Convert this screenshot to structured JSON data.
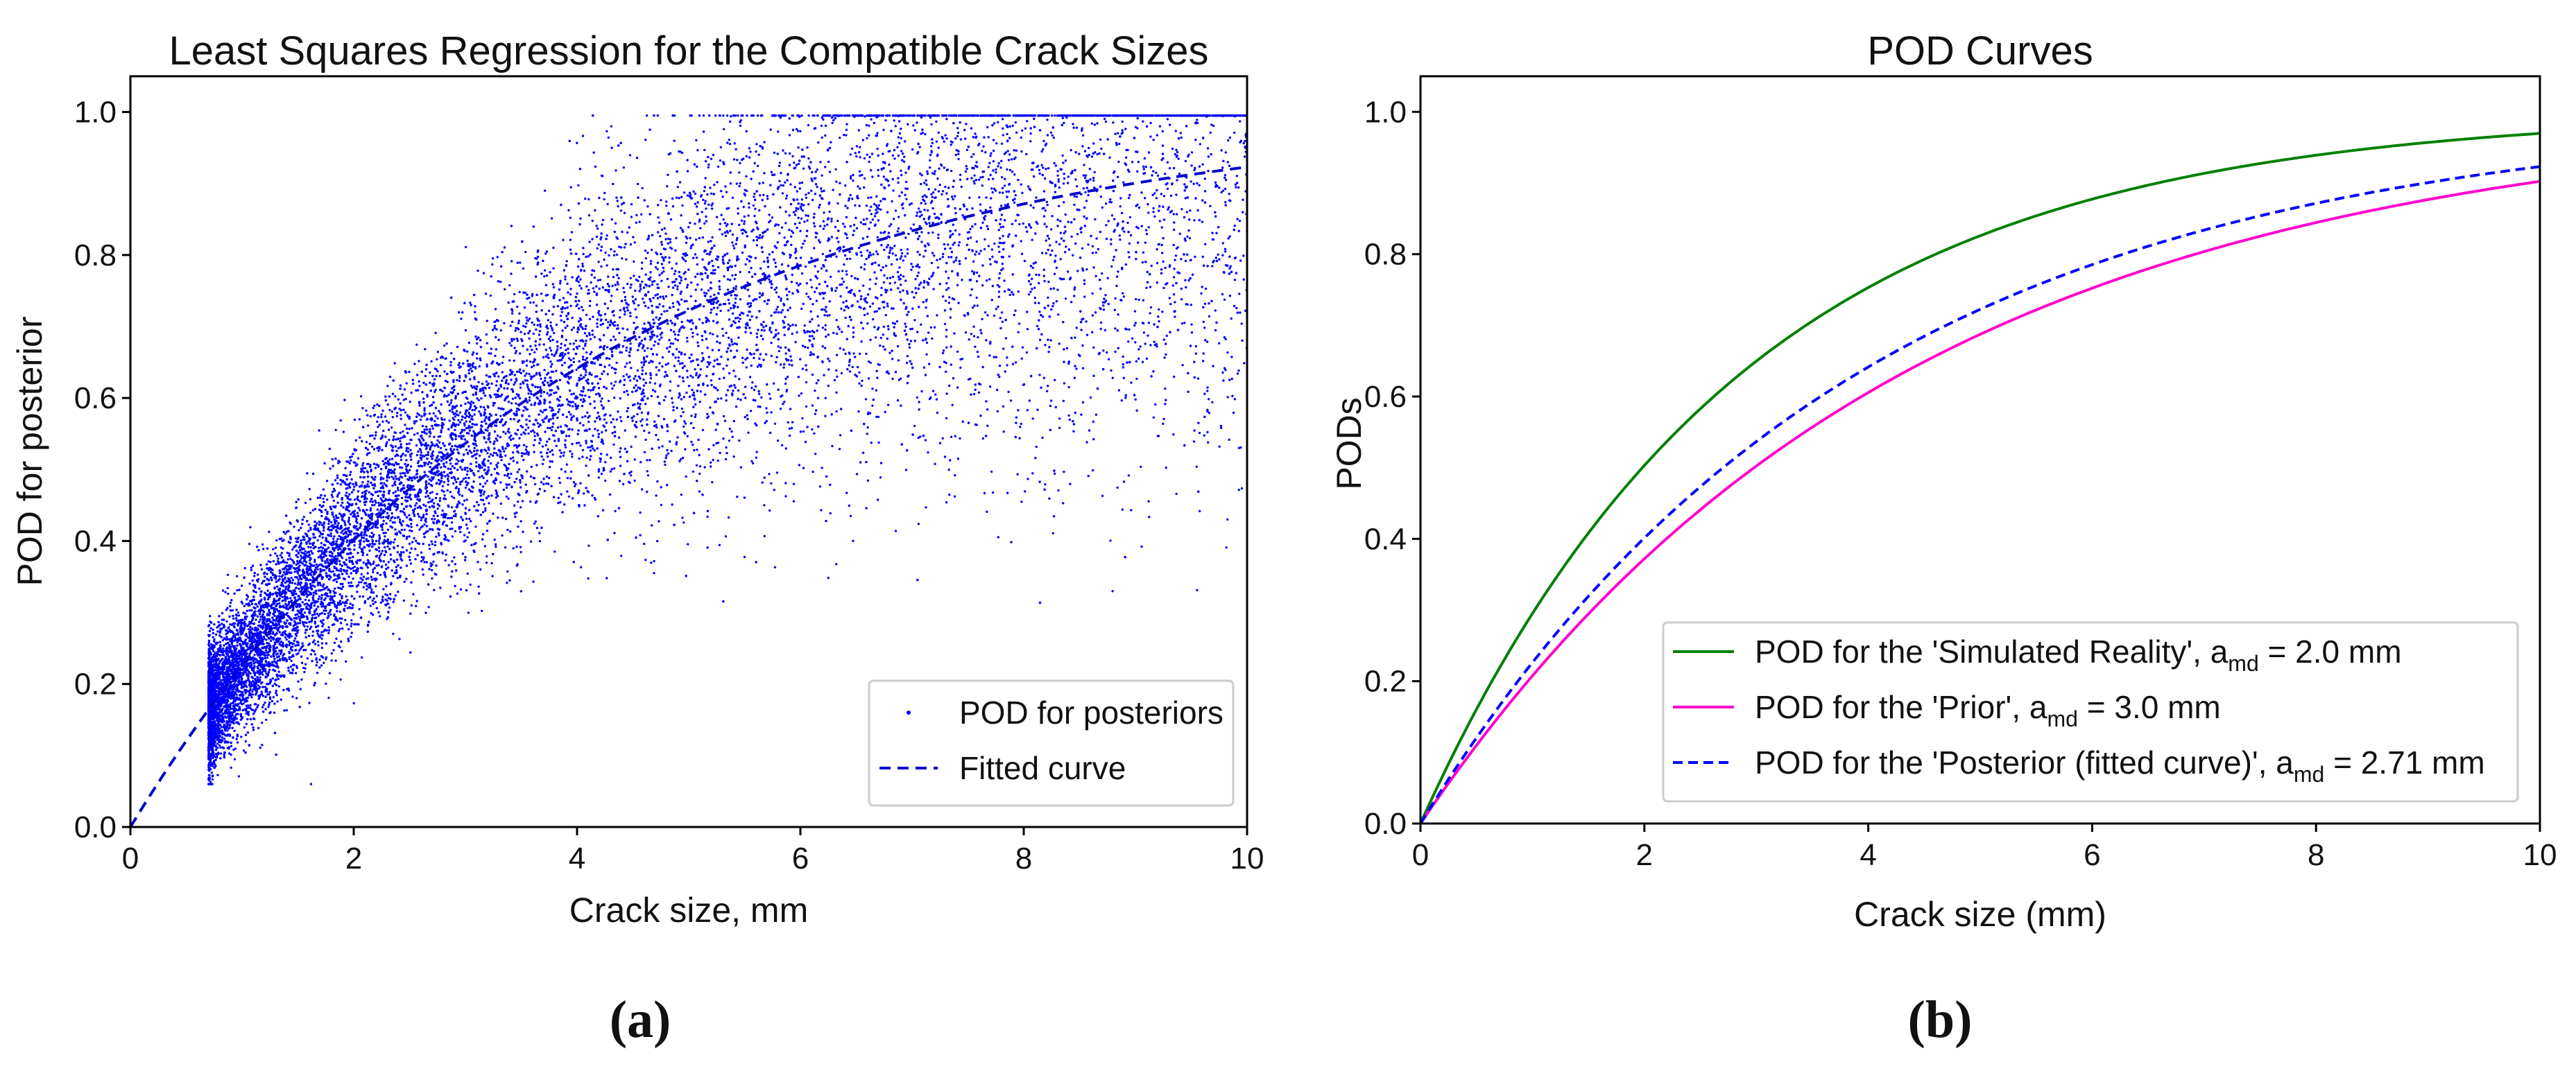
{
  "figure": {
    "panel_labels": [
      "(a)",
      "(b)"
    ]
  },
  "chart_data": [
    {
      "type": "scatter",
      "title": "Least Squares Regression for the Compatible Crack Sizes",
      "xlabel": "Crack size, mm",
      "ylabel": "POD for posterior",
      "xlim": [
        0,
        10
      ],
      "ylim": [
        0,
        1.05
      ],
      "xticks": [
        "0",
        "2",
        "4",
        "6",
        "8",
        "10"
      ],
      "yticks": [
        "0.0",
        "0.2",
        "0.4",
        "0.6",
        "0.8",
        "1.0"
      ],
      "grid": false,
      "legend_position": "lower-right",
      "scatter_color": "#0000ff",
      "scatter": {
        "n_points": 14000,
        "x_range": [
          0.7,
          10
        ],
        "description_model": "POD values scattered around fitted curve 1 - exp(-x/a), spread grows with crack size"
      },
      "fitted_curve": {
        "model": "1 - exp(-x / a_md)",
        "a_md": 3.9,
        "style": "dashed"
      },
      "legend": [
        {
          "label": "POD for posteriors",
          "marker": "point",
          "color": "#0000ff"
        },
        {
          "label": "Fitted curve",
          "marker": "dashed",
          "color": "#0000cc"
        }
      ]
    },
    {
      "type": "line",
      "title": "POD Curves",
      "xlabel": "Crack size (mm)",
      "ylabel": "PODs",
      "xlim": [
        0,
        10
      ],
      "ylim": [
        0,
        1.05
      ],
      "xticks": [
        "0",
        "2",
        "4",
        "6",
        "8",
        "10"
      ],
      "yticks": [
        "0.0",
        "0.2",
        "0.4",
        "0.6",
        "0.8",
        "1.0"
      ],
      "grid": false,
      "legend_position": "lower-right",
      "series": [
        {
          "name": "Simulated Reality",
          "model": "1 - exp(-x / a_md)",
          "a_md": 2.86,
          "color": "#008000",
          "style": "solid",
          "legend_prefix": "POD for the 'Simulated Reality', a",
          "legend_sub": "md",
          "legend_suffix": " = 2.0 mm"
        },
        {
          "name": "Prior",
          "model": "1 - exp(-x / a_md)",
          "a_md": 4.3,
          "color": "#ff00cc",
          "style": "solid",
          "legend_prefix": "POD for the 'Prior', a",
          "legend_sub": "md",
          "legend_suffix": " = 3.0 mm"
        },
        {
          "name": "Posterior (fitted curve)",
          "model": "1 - exp(-x / a_md)",
          "a_md": 3.9,
          "color": "#0000ff",
          "style": "dashed",
          "legend_prefix": "POD for the 'Posterior (fitted curve)', a",
          "legend_sub": "md",
          "legend_suffix": " = 2.71 mm"
        }
      ]
    }
  ]
}
